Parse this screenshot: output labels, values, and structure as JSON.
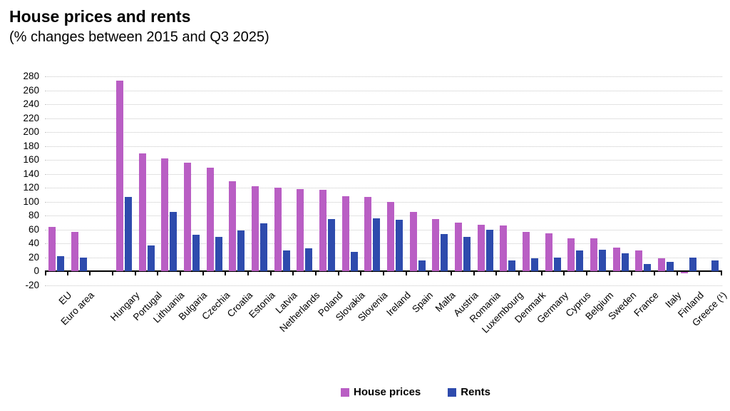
{
  "header": {
    "title": "House prices and rents",
    "subtitle": "(% changes between 2015 and Q3 2025)"
  },
  "legend": {
    "items": [
      {
        "label": "House prices",
        "color": "#b95ec4"
      },
      {
        "label": "Rents",
        "color": "#2e4bad"
      }
    ]
  },
  "colors": {
    "house_prices": "#b95ec4",
    "rents": "#2e4bad",
    "grid": "#c7c7c7",
    "axis": "#000000"
  },
  "chart_data": {
    "type": "bar",
    "title": "House prices and rents",
    "subtitle": "(% changes between 2015 and Q3 2025)",
    "categories": [
      "EU",
      "Euro area",
      "Hungary",
      "Portugal",
      "Lithuania",
      "Bulgaria",
      "Czechia",
      "Croatia",
      "Estonia",
      "Latvia",
      "Netherlands",
      "Poland",
      "Slovakia",
      "Slovenia",
      "Ireland",
      "Spain",
      "Malta",
      "Austria",
      "Romania",
      "Luxembourg",
      "Denmark",
      "Germany",
      "Cyprus",
      "Belgium",
      "Sweden",
      "France",
      "Italy",
      "Finland",
      "Greece (¹)"
    ],
    "series": [
      {
        "name": "House prices",
        "color": "#b95ec4",
        "values": [
          64,
          56,
          274,
          169,
          162,
          156,
          149,
          129,
          122,
          120,
          118,
          117,
          108,
          107,
          99,
          85,
          75,
          70,
          67,
          66,
          56,
          54,
          47,
          47,
          34,
          30,
          18,
          -2,
          null
        ]
      },
      {
        "name": "Rents",
        "color": "#2e4bad",
        "values": [
          22,
          20,
          107,
          37,
          85,
          52,
          49,
          58,
          69,
          30,
          33,
          75,
          28,
          76,
          74,
          15,
          53,
          49,
          59,
          15,
          18,
          19,
          30,
          31,
          26,
          10,
          13,
          19,
          15
        ]
      }
    ],
    "ylim": [
      -20,
      280
    ],
    "yticks": [
      -20,
      0,
      20,
      40,
      60,
      80,
      100,
      120,
      140,
      160,
      180,
      200,
      220,
      240,
      260,
      280
    ],
    "grid": "dotted-horizontal",
    "legend_position": "bottom",
    "gap_after_category": "Euro area",
    "x_tick_label_rotation_deg": 45
  }
}
